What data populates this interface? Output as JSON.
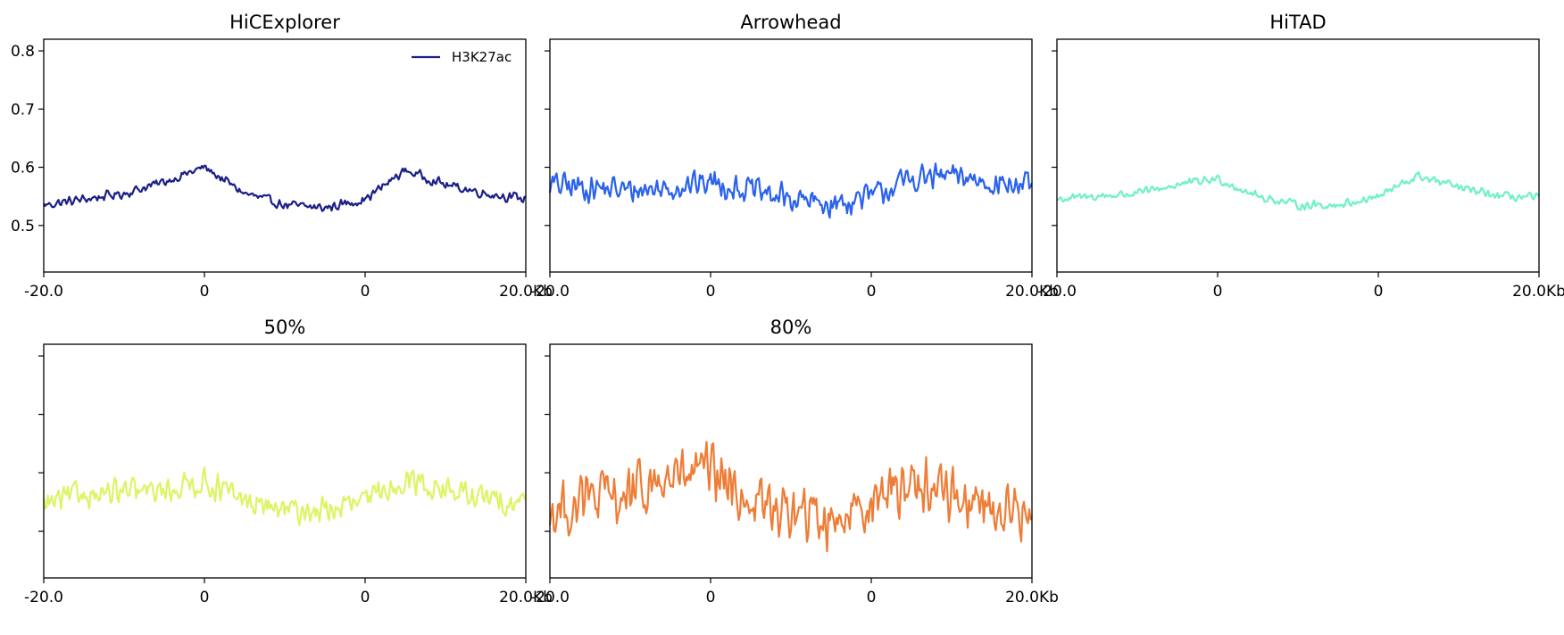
{
  "chart_data": [
    {
      "type": "line",
      "title": "HiCExplorer",
      "color": "#1b1f87",
      "noise": 0.01,
      "ylim": [
        0.42,
        0.82
      ],
      "yticks": [
        "0.5",
        "0.6",
        "0.7",
        "0.8"
      ],
      "ytick_values": [
        0.5,
        0.6,
        0.7,
        0.8
      ],
      "xticks": [
        "-20.0",
        "0",
        "0",
        "20.0Kb"
      ],
      "legend": "H3K27ac",
      "legend_position": "top-right",
      "x": [
        0,
        5,
        10,
        15,
        20,
        25,
        30,
        35,
        40,
        45,
        50,
        55,
        60
      ],
      "y": [
        0.535,
        0.545,
        0.555,
        0.575,
        0.6,
        0.555,
        0.535,
        0.53,
        0.545,
        0.595,
        0.57,
        0.555,
        0.545
      ]
    },
    {
      "type": "line",
      "title": "Arrowhead",
      "color": "#2a62ee",
      "noise": 0.028,
      "ylim": [
        0.42,
        0.82
      ],
      "yticks": [
        "",
        "",
        "",
        ""
      ],
      "ytick_values": [
        0.5,
        0.6,
        0.7,
        0.8
      ],
      "xticks": [
        "-20.0",
        "0",
        "0",
        "20.0Kb"
      ],
      "x": [
        0,
        5,
        10,
        15,
        20,
        25,
        30,
        35,
        40,
        45,
        50,
        55,
        60
      ],
      "y": [
        0.57,
        0.565,
        0.56,
        0.565,
        0.575,
        0.56,
        0.545,
        0.535,
        0.55,
        0.58,
        0.585,
        0.575,
        0.565
      ]
    },
    {
      "type": "line",
      "title": "HiTAD",
      "color": "#6ff0c9",
      "noise": 0.009,
      "ylim": [
        0.42,
        0.82
      ],
      "yticks": [
        "",
        "",
        "",
        ""
      ],
      "ytick_values": [
        0.5,
        0.6,
        0.7,
        0.8
      ],
      "xticks": [
        "-20.0",
        "0",
        "0",
        "20.0Kb"
      ],
      "x": [
        0,
        5,
        10,
        15,
        20,
        25,
        30,
        35,
        40,
        45,
        50,
        55,
        60
      ],
      "y": [
        0.545,
        0.55,
        0.555,
        0.57,
        0.58,
        0.55,
        0.535,
        0.535,
        0.55,
        0.585,
        0.565,
        0.55,
        0.548
      ]
    },
    {
      "type": "line",
      "title": "50%",
      "color": "#dcf566",
      "noise": 0.028,
      "ylim": [
        0.42,
        0.82
      ],
      "yticks": [
        "",
        "",
        "",
        ""
      ],
      "ytick_values": [
        0.5,
        0.6,
        0.7,
        0.8
      ],
      "xticks": [
        "-20.0",
        "0",
        "0",
        "20.0Kb"
      ],
      "x": [
        0,
        5,
        10,
        15,
        20,
        25,
        30,
        35,
        40,
        45,
        50,
        55,
        60
      ],
      "y": [
        0.545,
        0.565,
        0.565,
        0.57,
        0.585,
        0.55,
        0.535,
        0.535,
        0.55,
        0.59,
        0.57,
        0.555,
        0.55
      ]
    },
    {
      "type": "line",
      "title": "80%",
      "color": "#ee7d37",
      "noise": 0.06,
      "ylim": [
        0.42,
        0.82
      ],
      "yticks": [
        "",
        "",
        "",
        ""
      ],
      "ytick_values": [
        0.5,
        0.6,
        0.7,
        0.8
      ],
      "xticks": [
        "-20.0",
        "0",
        "0",
        "20.0Kb"
      ],
      "x": [
        0,
        5,
        10,
        15,
        20,
        25,
        30,
        35,
        40,
        45,
        50,
        55,
        60
      ],
      "y": [
        0.53,
        0.555,
        0.56,
        0.59,
        0.6,
        0.55,
        0.53,
        0.52,
        0.555,
        0.585,
        0.565,
        0.54,
        0.525
      ]
    }
  ]
}
